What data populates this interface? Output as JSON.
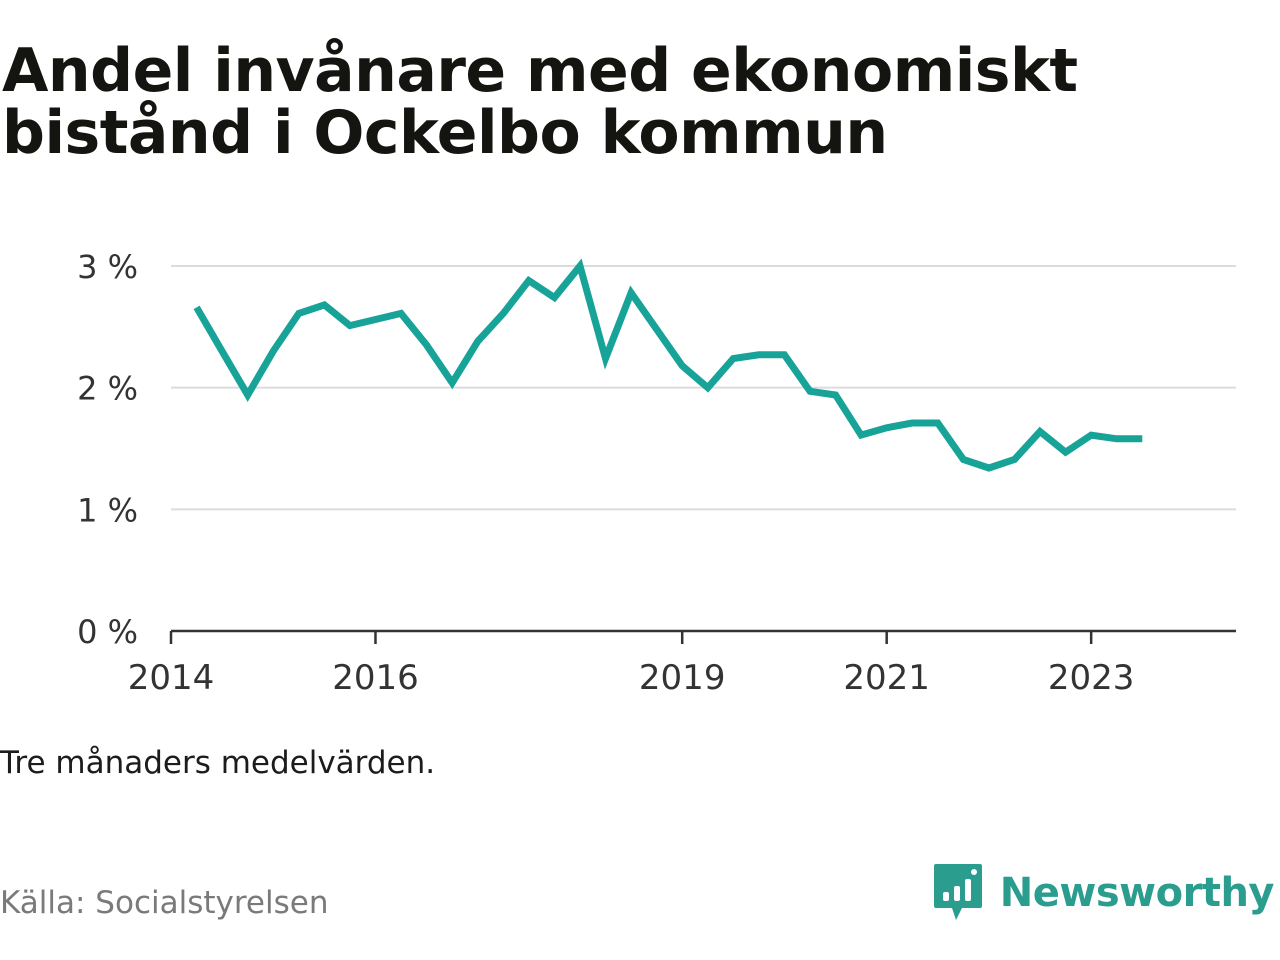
{
  "title": "Andel invånare med ekonomiskt bistånd i Ockelbo kommun",
  "note": "Tre månaders medelvärden.",
  "source": "Källa: Socialstyrelsen",
  "brand": {
    "name": "Newsworthy",
    "icon": "newsworthy-logo-icon"
  },
  "colors": {
    "line": "#17a398",
    "grid": "#dcdcdc",
    "axis": "#333333",
    "brand": "#2a9d8f"
  },
  "chart_data": {
    "type": "line",
    "title": "Andel invånare med ekonomiskt bistånd i Ockelbo kommun",
    "xlabel": "",
    "ylabel": "",
    "x_ticks": [
      "2014",
      "2016",
      "2019",
      "2021",
      "2023"
    ],
    "y_ticks": [
      "0 %",
      "1 %",
      "2 %",
      "3 %"
    ],
    "ylim": [
      0,
      3
    ],
    "grid": true,
    "x_start": "2014-01",
    "x_end": "2024-06",
    "series": [
      {
        "points": [
          [
            "2014-04",
            2.66
          ],
          [
            "2014-07",
            2.3
          ],
          [
            "2014-10",
            1.94
          ],
          [
            "2015-01",
            2.3
          ],
          [
            "2015-04",
            2.61
          ],
          [
            "2015-07",
            2.68
          ],
          [
            "2015-10",
            2.51
          ],
          [
            "2016-01",
            2.56
          ],
          [
            "2016-04",
            2.61
          ],
          [
            "2016-07",
            2.35
          ],
          [
            "2016-10",
            2.04
          ],
          [
            "2017-01",
            2.38
          ],
          [
            "2017-04",
            2.61
          ],
          [
            "2017-07",
            2.88
          ],
          [
            "2017-10",
            2.74
          ],
          [
            "2018-01",
            3.0
          ],
          [
            "2018-04",
            2.24
          ],
          [
            "2018-07",
            2.78
          ],
          [
            "2018-10",
            2.48
          ],
          [
            "2019-01",
            2.18
          ],
          [
            "2019-04",
            2.0
          ],
          [
            "2019-07",
            2.24
          ],
          [
            "2019-10",
            2.27
          ],
          [
            "2020-01",
            2.27
          ],
          [
            "2020-04",
            1.97
          ],
          [
            "2020-07",
            1.94
          ],
          [
            "2020-10",
            1.61
          ],
          [
            "2021-01",
            1.67
          ],
          [
            "2021-04",
            1.71
          ],
          [
            "2021-07",
            1.71
          ],
          [
            "2021-10",
            1.41
          ],
          [
            "2022-01",
            1.34
          ],
          [
            "2022-04",
            1.41
          ],
          [
            "2022-07",
            1.64
          ],
          [
            "2022-10",
            1.47
          ],
          [
            "2023-01",
            1.61
          ],
          [
            "2023-04",
            1.58
          ],
          [
            "2023-07",
            1.58
          ]
        ]
      }
    ]
  }
}
